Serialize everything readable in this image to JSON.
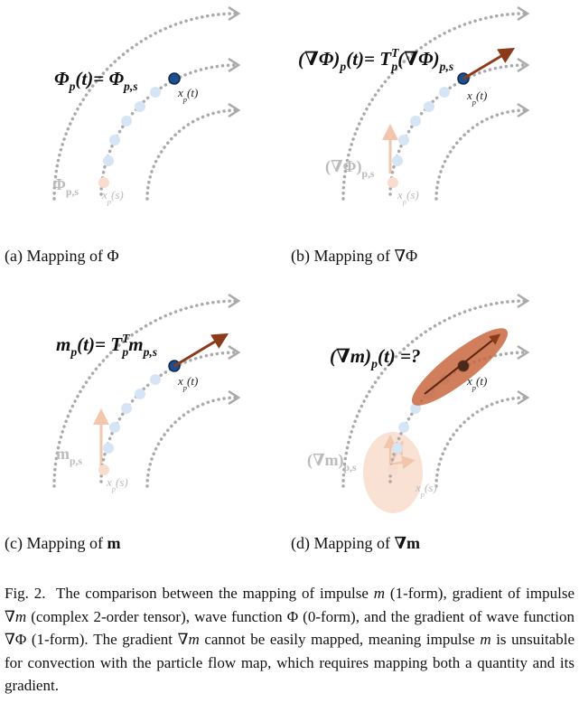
{
  "panels": [
    {
      "equation": [
        "Φ",
        "p",
        "(t)= Φ",
        "p,s"
      ],
      "point_t": [
        "x",
        "p",
        "(t)"
      ],
      "point_s": [
        "x",
        "p",
        "(s)"
      ],
      "quantity_s": [
        "Φ",
        "p,s"
      ],
      "caption": [
        "(a) Mapping of Φ"
      ]
    },
    {
      "equation": [
        "(∇Φ)",
        "p",
        "(t)= T",
        "T",
        "p",
        "(∇Φ)",
        "p,s"
      ],
      "point_t": [
        "x",
        "p",
        "(t)"
      ],
      "point_s": [
        "x",
        "p",
        "(s)"
      ],
      "quantity_s": [
        "(∇Φ)",
        "p,s"
      ],
      "caption": [
        "(b) Mapping of ∇Φ"
      ]
    },
    {
      "equation": [
        "m",
        "p",
        "(t)= T",
        "T",
        "p",
        "m",
        "p,s"
      ],
      "point_t": [
        "x",
        "p",
        "(t)"
      ],
      "point_s": [
        "x",
        "p",
        "(s)"
      ],
      "quantity_s": [
        "m",
        "p,s"
      ],
      "caption": [
        "(c) Mapping of ",
        "m"
      ]
    },
    {
      "equation": [
        "(∇m)",
        "p",
        "(t) =?"
      ],
      "point_t": [
        "x",
        "p",
        "(t)"
      ],
      "point_s": [
        "x",
        "p",
        "(s)"
      ],
      "quantity_s": [
        "(∇m)",
        "p,s"
      ],
      "caption": [
        "(d) Mapping of ",
        "∇m"
      ]
    }
  ],
  "figure_caption": [
    "Fig. 2.",
    "  The comparison between the mapping of impulse ",
    "m",
    " (1-form), gradient of impulse ∇",
    "m",
    " (complex 2-order tensor), wave function Φ (0-form), and the gradient of wave function ∇Φ (1-form). The gradient ∇",
    "m",
    " cannot be easily mapped, meaning impulse ",
    "m",
    " is unsuitable for convection with the particle flow map, which requires mapping both a quantity and its gradient."
  ]
}
